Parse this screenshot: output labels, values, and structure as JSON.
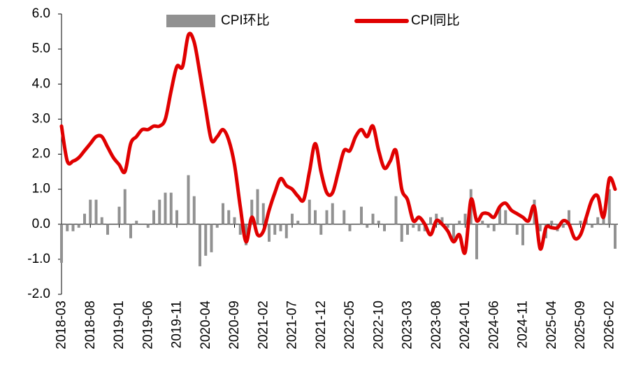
{
  "chart_data": {
    "type": "bar-line",
    "categories": [
      "2018-03",
      null,
      null,
      null,
      null,
      "2018-08",
      null,
      null,
      null,
      null,
      "2019-01",
      null,
      null,
      null,
      null,
      "2019-06",
      null,
      null,
      null,
      null,
      "2019-11",
      null,
      null,
      null,
      null,
      "2020-04",
      null,
      null,
      null,
      null,
      "2020-09",
      null,
      null,
      null,
      null,
      "2021-02",
      null,
      null,
      null,
      null,
      "2021-07",
      null,
      null,
      null,
      null,
      "2021-12",
      null,
      null,
      null,
      null,
      "2022-05",
      null,
      null,
      null,
      null,
      "2022-10",
      null,
      null,
      null,
      null,
      "2023-03",
      null,
      null,
      null,
      null,
      "2023-08",
      null,
      null,
      null,
      null,
      "2024-01",
      null,
      null,
      null,
      null,
      "2024-06",
      null,
      null,
      null,
      null,
      "2024-11",
      null,
      null,
      null,
      null,
      "2025-04",
      null,
      null,
      null,
      null,
      "2025-09",
      null,
      null,
      null,
      null,
      "2026-02",
      null
    ],
    "series": [
      {
        "name": "CPI环比",
        "color": "#919191",
        "kind": "bar",
        "values": [
          -1.1,
          -0.2,
          -0.2,
          -0.1,
          0.3,
          0.7,
          0.7,
          0.2,
          -0.3,
          0.0,
          0.5,
          1.0,
          -0.4,
          0.1,
          0.0,
          -0.1,
          0.4,
          0.7,
          0.9,
          0.9,
          0.4,
          0.0,
          1.4,
          0.8,
          -1.2,
          -0.9,
          -0.8,
          -0.1,
          0.6,
          0.4,
          0.2,
          -0.3,
          -0.6,
          0.7,
          1.0,
          0.6,
          -0.5,
          -0.3,
          -0.2,
          -0.4,
          0.3,
          0.1,
          0.0,
          0.7,
          0.4,
          -0.3,
          0.4,
          0.6,
          0.0,
          0.4,
          -0.2,
          0.0,
          0.5,
          -0.1,
          0.3,
          0.1,
          -0.2,
          0.0,
          0.8,
          -0.5,
          -0.3,
          -0.1,
          -0.2,
          -0.2,
          0.2,
          0.3,
          0.2,
          -0.1,
          -0.5,
          0.1,
          0.3,
          1.0,
          -1.0,
          0.1,
          -0.1,
          -0.2,
          0.5,
          0.4,
          0.0,
          -0.3,
          -0.6,
          0.0,
          0.7,
          -0.2,
          -0.4,
          0.1,
          -0.2,
          -0.1,
          0.4,
          0.0,
          0.1,
          0.2,
          -0.1,
          0.2,
          0.2,
          1.0,
          -0.7
        ]
      },
      {
        "name": "CPI同比",
        "color": "#e00000",
        "kind": "line",
        "values": [
          2.8,
          1.8,
          1.8,
          1.9,
          2.1,
          2.3,
          2.5,
          2.5,
          2.2,
          1.9,
          1.7,
          1.5,
          2.3,
          2.5,
          2.7,
          2.7,
          2.8,
          2.8,
          3.0,
          3.8,
          4.5,
          4.5,
          5.4,
          5.2,
          4.3,
          3.3,
          2.4,
          2.5,
          2.7,
          2.4,
          1.7,
          0.5,
          -0.5,
          0.2,
          -0.3,
          -0.2,
          0.4,
          0.9,
          1.3,
          1.1,
          1.0,
          0.8,
          0.7,
          1.5,
          2.3,
          1.5,
          0.9,
          0.9,
          1.5,
          2.1,
          2.1,
          2.5,
          2.7,
          2.5,
          2.8,
          2.1,
          1.6,
          1.8,
          2.1,
          1.0,
          0.7,
          0.1,
          0.2,
          0.0,
          -0.3,
          0.1,
          0.0,
          -0.2,
          -0.5,
          -0.3,
          -0.8,
          0.7,
          0.1,
          0.3,
          0.3,
          0.2,
          0.5,
          0.6,
          0.4,
          0.3,
          0.2,
          0.1,
          0.5,
          -0.7,
          -0.1,
          -0.1,
          -0.1,
          0.1,
          0.0,
          -0.4,
          -0.3,
          0.2,
          0.7,
          0.8,
          0.2,
          1.3,
          1.0
        ]
      }
    ],
    "ylim": [
      -2,
      6
    ],
    "yticks": [
      {
        "value": -2,
        "label": "-2.0"
      },
      {
        "value": -1,
        "label": "-1.0"
      },
      {
        "value": 0,
        "label": "0.0"
      },
      {
        "value": 1,
        "label": "1.0"
      },
      {
        "value": 2,
        "label": "2.0"
      },
      {
        "value": 3,
        "label": "3.0"
      },
      {
        "value": 4,
        "label": "4.0"
      },
      {
        "value": 5,
        "label": "5.0"
      },
      {
        "value": 6,
        "label": "6.0"
      }
    ],
    "legend": "top",
    "grid": false
  }
}
